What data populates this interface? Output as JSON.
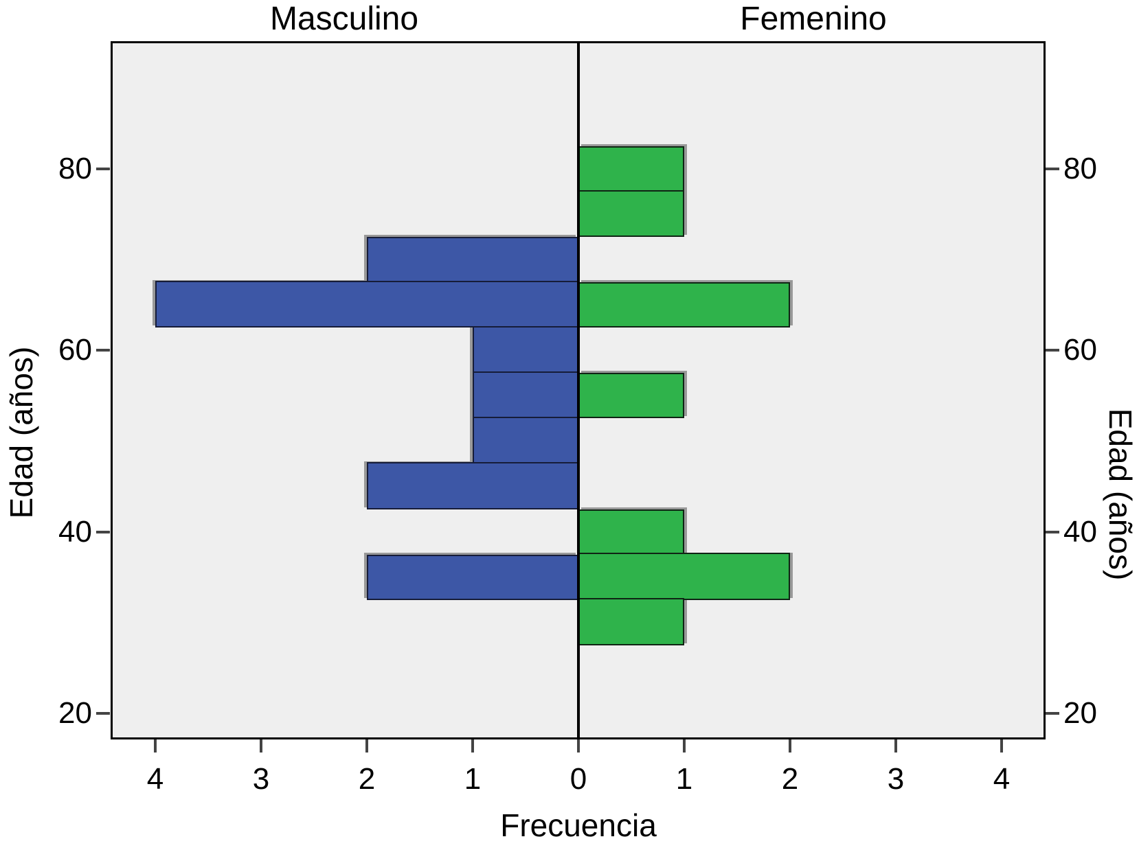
{
  "panel_titles": {
    "left": "Masculino",
    "right": "Femenino"
  },
  "axis_labels": {
    "x": "Frecuencia",
    "y_left": "Edad (años)",
    "y_right": "Edad (años)"
  },
  "x_axis": {
    "left_labels": [
      "4",
      "3",
      "2",
      "1"
    ],
    "zero_label": "0",
    "right_labels": [
      "1",
      "2",
      "3",
      "4"
    ]
  },
  "y_axis": {
    "labels": [
      "20",
      "40",
      "60",
      "80"
    ]
  },
  "colors": {
    "male_fill": "#3D57A6",
    "male_border": "#161C38",
    "female_fill": "#2FB34B",
    "female_border": "#0F2414",
    "plot_background": "#EFEFEF",
    "frame": "#000000",
    "axis_line": "#000000",
    "tick": "#444444",
    "shadow": "#999999"
  },
  "chart_data": {
    "type": "bar",
    "subtype": "population-pyramid-histogram",
    "title_left_panel": "Masculino",
    "title_right_panel": "Femenino",
    "xlabel": "Frecuencia",
    "ylabel": "Edad (años)",
    "x_ticks_per_side": [
      0,
      1,
      2,
      3,
      4
    ],
    "x_max_per_side": 4.42,
    "y_ticks": [
      20,
      40,
      60,
      80
    ],
    "y_range": [
      17.1,
      94.1
    ],
    "bin_width_years": 5,
    "grid": false,
    "legend": false,
    "series": [
      {
        "name": "Masculino",
        "side": "left",
        "bins": [
          {
            "age_from": 67.5,
            "age_to": 72.5,
            "value": 2
          },
          {
            "age_from": 62.5,
            "age_to": 67.5,
            "value": 4
          },
          {
            "age_from": 57.5,
            "age_to": 62.5,
            "value": 1
          },
          {
            "age_from": 52.5,
            "age_to": 57.5,
            "value": 1
          },
          {
            "age_from": 47.5,
            "age_to": 52.5,
            "value": 1
          },
          {
            "age_from": 42.5,
            "age_to": 47.5,
            "value": 2
          },
          {
            "age_from": 32.5,
            "age_to": 37.5,
            "value": 2
          }
        ]
      },
      {
        "name": "Femenino",
        "side": "right",
        "bins": [
          {
            "age_from": 77.5,
            "age_to": 82.5,
            "value": 1
          },
          {
            "age_from": 72.5,
            "age_to": 77.5,
            "value": 1
          },
          {
            "age_from": 62.5,
            "age_to": 67.5,
            "value": 2
          },
          {
            "age_from": 52.5,
            "age_to": 57.5,
            "value": 1
          },
          {
            "age_from": 37.5,
            "age_to": 42.5,
            "value": 1
          },
          {
            "age_from": 32.5,
            "age_to": 37.5,
            "value": 2
          },
          {
            "age_from": 27.5,
            "age_to": 32.5,
            "value": 1
          }
        ]
      }
    ]
  }
}
